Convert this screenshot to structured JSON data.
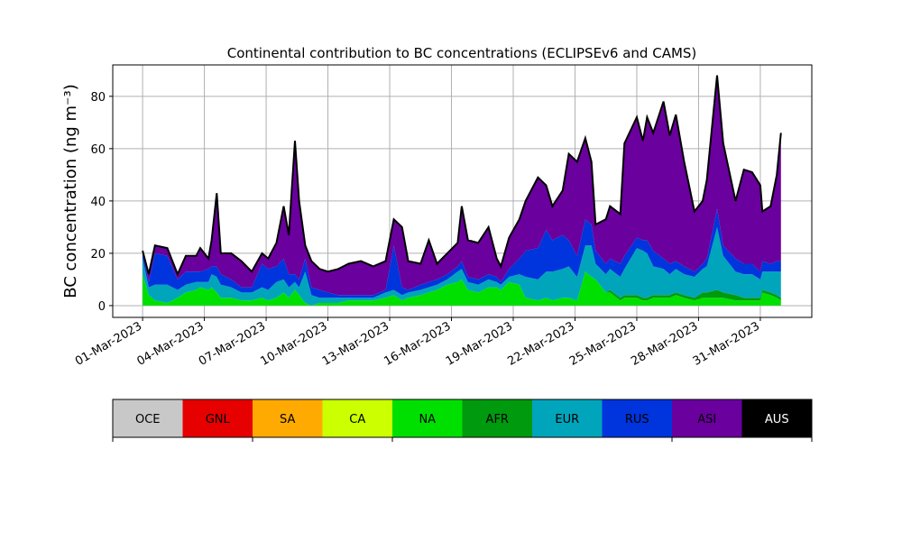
{
  "chart_data": {
    "type": "area",
    "stacked": true,
    "title": "Continental contribution to BC concentrations (ECLIPSEv6 and CAMS)",
    "xlabel": "",
    "ylabel": "BC concentration (ng m⁻³)",
    "ylim": [
      -4.5,
      92
    ],
    "xlim_days_from_01_Mar_2023": [
      -1.45,
      32.5
    ],
    "yticks": [
      "0",
      "20",
      "40",
      "60",
      "80"
    ],
    "ytick_values": [
      0,
      20,
      40,
      60,
      80
    ],
    "xticks": [
      "01-Mar-2023",
      "04-Mar-2023",
      "07-Mar-2023",
      "10-Mar-2023",
      "13-Mar-2023",
      "16-Mar-2023",
      "19-Mar-2023",
      "22-Mar-2023",
      "25-Mar-2023",
      "28-Mar-2023",
      "31-Mar-2023"
    ],
    "xtick_days": [
      0,
      3,
      6,
      9,
      12,
      15,
      18,
      21,
      24,
      27,
      30
    ],
    "grid": true,
    "legend": {
      "placement": "bottom colorbar",
      "entries": [
        {
          "label": "OCE",
          "color": "#c8c8c8"
        },
        {
          "label": "GNL",
          "color": "#e60000"
        },
        {
          "label": "SA",
          "color": "#ffaa00"
        },
        {
          "label": "CA",
          "color": "#ccff00"
        },
        {
          "label": "NA",
          "color": "#00e000"
        },
        {
          "label": "AFR",
          "color": "#009a0e"
        },
        {
          "label": "EUR",
          "color": "#00a5bc"
        },
        {
          "label": "RUS",
          "color": "#0034dc"
        },
        {
          "label": "ASI",
          "color": "#6a009d"
        },
        {
          "label": "AUS",
          "color": "#000000"
        }
      ]
    },
    "series_columns": [
      "day",
      "total",
      "NA",
      "AFR",
      "EUR",
      "RUS"
    ],
    "series_note": "ASI = total - (NA+AFR+EUR+RUS); other regions ~0",
    "points": [
      [
        0.0,
        21,
        12,
        0,
        6,
        3
      ],
      [
        0.3,
        12,
        4,
        0,
        3,
        2
      ],
      [
        0.6,
        23,
        2,
        0,
        6,
        12
      ],
      [
        1.2,
        22,
        1,
        0,
        7,
        11
      ],
      [
        1.7,
        12,
        3,
        0,
        3,
        4
      ],
      [
        2.1,
        19,
        5,
        0,
        3,
        5
      ],
      [
        2.6,
        19,
        6,
        0,
        3,
        4
      ],
      [
        2.8,
        22,
        7,
        0,
        2,
        4
      ],
      [
        3.2,
        18,
        6,
        0,
        3,
        5
      ],
      [
        3.35,
        25,
        7,
        0,
        5,
        3
      ],
      [
        3.6,
        43,
        5,
        0,
        6,
        4
      ],
      [
        3.8,
        20,
        3,
        0,
        5,
        4
      ],
      [
        4.3,
        20,
        3,
        0,
        4,
        3
      ],
      [
        4.8,
        17,
        2,
        0,
        3,
        2
      ],
      [
        5.3,
        13,
        2,
        0,
        3,
        2
      ],
      [
        5.8,
        20,
        3,
        0,
        4,
        9
      ],
      [
        6.1,
        18,
        2,
        0,
        4,
        8
      ],
      [
        6.5,
        24,
        3,
        0,
        6,
        6
      ],
      [
        6.85,
        38,
        5,
        0,
        5,
        8
      ],
      [
        7.1,
        27,
        3,
        0,
        4,
        5
      ],
      [
        7.4,
        63,
        6,
        0,
        3,
        3
      ],
      [
        7.6,
        40,
        4,
        0,
        3,
        3
      ],
      [
        7.9,
        23,
        1,
        0,
        12,
        5
      ],
      [
        8.2,
        17,
        0,
        0,
        4,
        3
      ],
      [
        8.6,
        14,
        1,
        0,
        2,
        3
      ],
      [
        9.0,
        13,
        1,
        0,
        2,
        2
      ],
      [
        9.5,
        14,
        1,
        0,
        2,
        1
      ],
      [
        10.0,
        16,
        2,
        0,
        1,
        1
      ],
      [
        10.6,
        17,
        2,
        0,
        1,
        1
      ],
      [
        11.2,
        15,
        2,
        0,
        1,
        1
      ],
      [
        11.8,
        17,
        3,
        0,
        2,
        1
      ],
      [
        12.2,
        33,
        4,
        0,
        2,
        17
      ],
      [
        12.6,
        30,
        2,
        0,
        2,
        3
      ],
      [
        12.9,
        17,
        3,
        0,
        2,
        1
      ],
      [
        13.5,
        16,
        4,
        0,
        2,
        2
      ],
      [
        13.9,
        25,
        5,
        0,
        2,
        2
      ],
      [
        14.3,
        16,
        6,
        0,
        2,
        2
      ],
      [
        14.8,
        20,
        8,
        0,
        2,
        2
      ],
      [
        15.3,
        24,
        9,
        0,
        4,
        2
      ],
      [
        15.5,
        38,
        10,
        0,
        4,
        3
      ],
      [
        15.8,
        25,
        6,
        0,
        3,
        2
      ],
      [
        16.3,
        24,
        5,
        0,
        3,
        2
      ],
      [
        16.8,
        30,
        7,
        0,
        3,
        2
      ],
      [
        17.2,
        18,
        7,
        0,
        2,
        2
      ],
      [
        17.4,
        15,
        6,
        0,
        2,
        1
      ],
      [
        17.8,
        26,
        9,
        0,
        2,
        3
      ],
      [
        18.3,
        33,
        8,
        0,
        4,
        6
      ],
      [
        18.6,
        40,
        3,
        0,
        8,
        10
      ],
      [
        19.2,
        49,
        2,
        0,
        8,
        12
      ],
      [
        19.6,
        46,
        3,
        0,
        10,
        16
      ],
      [
        19.9,
        38,
        2,
        0,
        11,
        12
      ],
      [
        20.4,
        44,
        3,
        0,
        11,
        13
      ],
      [
        20.7,
        58,
        3,
        0,
        12,
        10
      ],
      [
        21.1,
        55,
        2,
        0,
        9,
        8
      ],
      [
        21.5,
        64,
        13,
        0,
        10,
        10
      ],
      [
        21.8,
        55,
        11,
        0,
        12,
        8
      ],
      [
        22.0,
        31,
        10,
        0,
        6,
        5
      ],
      [
        22.5,
        33,
        5,
        0,
        7,
        4
      ],
      [
        22.7,
        38,
        5,
        1,
        8,
        4
      ],
      [
        23.2,
        35,
        2,
        1,
        8,
        5
      ],
      [
        23.4,
        62,
        3,
        1,
        10,
        5
      ],
      [
        24.0,
        72,
        3,
        1,
        18,
        4
      ],
      [
        24.3,
        63,
        2,
        1,
        18,
        4
      ],
      [
        24.5,
        72,
        2,
        1,
        17,
        5
      ],
      [
        24.8,
        66,
        3,
        1,
        11,
        6
      ],
      [
        25.3,
        78,
        3,
        1,
        10,
        4
      ],
      [
        25.6,
        65,
        3,
        1,
        8,
        4
      ],
      [
        25.9,
        73,
        4,
        1,
        9,
        3
      ],
      [
        26.3,
        55,
        3,
        1,
        8,
        3
      ],
      [
        26.8,
        36,
        2,
        1,
        8,
        2
      ],
      [
        27.2,
        40,
        3,
        2,
        9,
        2
      ],
      [
        27.4,
        48,
        3,
        2,
        10,
        3
      ],
      [
        27.9,
        88,
        3,
        3,
        24,
        7
      ],
      [
        28.2,
        62,
        3,
        2,
        14,
        4
      ],
      [
        28.8,
        40,
        2,
        2,
        9,
        5
      ],
      [
        29.2,
        52,
        2,
        1,
        9,
        4
      ],
      [
        29.6,
        51,
        2,
        1,
        9,
        4
      ],
      [
        30.0,
        46,
        2,
        1,
        7,
        3
      ],
      [
        30.1,
        36,
        5,
        1,
        7,
        4
      ],
      [
        30.5,
        38,
        4,
        1,
        8,
        3
      ],
      [
        30.8,
        50,
        3,
        1,
        9,
        4
      ],
      [
        31.0,
        66,
        2,
        1,
        10,
        4
      ]
    ]
  }
}
